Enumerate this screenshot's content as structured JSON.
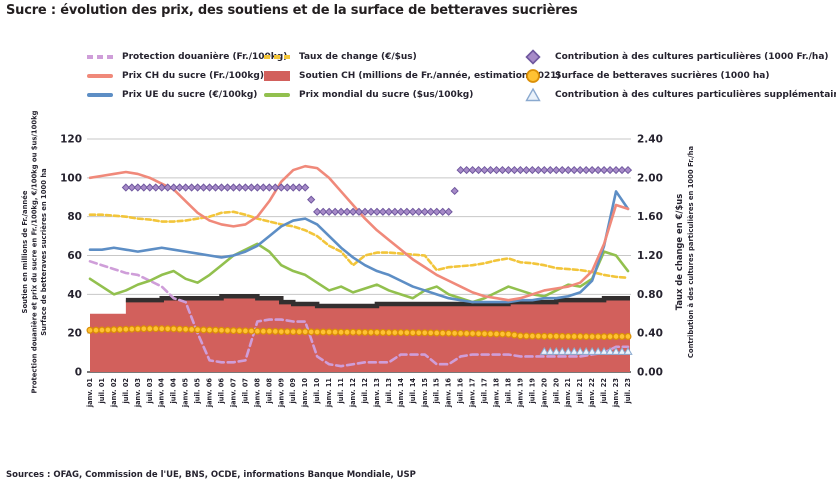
{
  "title": "Sucre : évolution des prix, des soutiens et de la surface de betteraves sucrières",
  "footer": "Sources : OFAG, Commission de l'UE, BNS, OCDE, informations Banque Mondiale, USP",
  "colors": {
    "text": "#26232f",
    "grid": "#c7c7c7",
    "axis": "#4d4d4d"
  },
  "axes": {
    "left": {
      "ticks": [
        0,
        20,
        40,
        60,
        80,
        100,
        120
      ],
      "title_lines": [
        "Soutien en millions de Fr./année",
        "Protection douanière et prix du sucre en Fr./100kg, €/100kg ou $us/100kg",
        "Surface de betteraves sucrières en 1000 ha"
      ]
    },
    "right": {
      "ticks": [
        "0.00",
        "0.40",
        "0.80",
        "1.20",
        "1.60",
        "2.00",
        "2.40"
      ],
      "title_lines": [
        "Taux de change en €/$us",
        "Contribution à des cultures particulières en 1000 Fr./ha"
      ]
    }
  },
  "legend": {
    "columns": [
      [
        "protection",
        "prix_ch",
        "prix_ue"
      ],
      [
        "taux_change",
        "soutien",
        "prix_mondial"
      ],
      [
        "contribution",
        "surface",
        "contribution_supp"
      ]
    ]
  },
  "chart_data": {
    "type": "line",
    "title": "Sucre : évolution des prix, des soutiens et de la surface de betteraves sucrières",
    "grid": true,
    "ylim_left": [
      0,
      120
    ],
    "ylim_right": [
      0,
      2.4
    ],
    "x_labels": [
      "janv. 01",
      "juil. 01",
      "janv. 02",
      "juil. 02",
      "janv. 03",
      "juil. 03",
      "janv. 04",
      "juil. 04",
      "janv. 05",
      "juil. 05",
      "janv. 06",
      "juil. 06",
      "janv. 07",
      "juil. 07",
      "janv. 08",
      "juil. 08",
      "janv. 09",
      "juil. 09",
      "janv. 10",
      "juil. 10",
      "janv. 11",
      "juil. 11",
      "janv. 12",
      "juil. 12",
      "janv. 13",
      "juil. 13",
      "janv. 14",
      "juil. 14",
      "janv. 15",
      "juil. 15",
      "janv. 16",
      "juil. 16",
      "janv. 17",
      "juil. 17",
      "janv. 18",
      "juil. 18",
      "janv. 19",
      "juil. 19",
      "janv. 20",
      "juil. 20",
      "janv. 21",
      "juil. 21",
      "janv. 22",
      "juil. 22",
      "janv. 23",
      "juil. 23"
    ],
    "series": [
      {
        "id": "protection",
        "name": "Protection douanière (Fr./100kg)",
        "axis": "left",
        "style": "dashed-line",
        "color": "#cf9ed9",
        "values": [
          57,
          55,
          53,
          51,
          50,
          47,
          44,
          38,
          36,
          20,
          6,
          5,
          5,
          6,
          26,
          27,
          27,
          26,
          26,
          8,
          4,
          3,
          4,
          5,
          5,
          5,
          9,
          9,
          9,
          4,
          4,
          8,
          9,
          9,
          9,
          9,
          8,
          8,
          8,
          8,
          8,
          8,
          9,
          10,
          13,
          13
        ]
      },
      {
        "id": "prix_ch",
        "name": "Prix CH du sucre (Fr./100kg)",
        "axis": "left",
        "style": "line",
        "color": "#f0897a",
        "values": [
          100,
          101,
          102,
          103,
          102,
          100,
          97,
          94,
          88,
          82,
          78,
          76,
          75,
          76,
          80,
          88,
          98,
          104,
          106,
          105,
          100,
          93,
          86,
          79,
          73,
          68,
          63,
          58,
          54,
          50,
          47,
          44,
          41,
          39,
          38,
          37,
          38,
          40,
          42,
          43,
          44,
          46,
          52,
          66,
          86,
          84
        ]
      },
      {
        "id": "prix_ue",
        "name": "Prix UE du sucre (€/100kg)",
        "axis": "left",
        "style": "line",
        "color": "#5d8ec5",
        "values": [
          63,
          63,
          64,
          63,
          62,
          63,
          64,
          63,
          62,
          61,
          60,
          59,
          60,
          62,
          65,
          70,
          75,
          78,
          79,
          76,
          70,
          64,
          59,
          55,
          52,
          50,
          47,
          44,
          42,
          40,
          38,
          37,
          36,
          36,
          36,
          36,
          37,
          37,
          38,
          38,
          39,
          41,
          47,
          65,
          93,
          84
        ]
      },
      {
        "id": "taux_change",
        "name": "Taux de change (€/$us)",
        "axis": "right",
        "style": "dashed-line",
        "color": "#f2c53a",
        "values": [
          1.62,
          1.62,
          1.61,
          1.6,
          1.58,
          1.57,
          1.55,
          1.55,
          1.56,
          1.58,
          1.6,
          1.64,
          1.65,
          1.62,
          1.58,
          1.55,
          1.52,
          1.5,
          1.46,
          1.4,
          1.3,
          1.24,
          1.1,
          1.2,
          1.23,
          1.23,
          1.22,
          1.21,
          1.2,
          1.05,
          1.08,
          1.09,
          1.1,
          1.12,
          1.15,
          1.17,
          1.13,
          1.12,
          1.1,
          1.07,
          1.06,
          1.05,
          1.03,
          1.0,
          0.98,
          0.97
        ]
      },
      {
        "id": "soutien",
        "name": "Soutien CH (millions de Fr./année, estimation 2021)",
        "axis": "left",
        "style": "step-area",
        "color": "#d2605c",
        "edge_color": "#332f2f",
        "values": [
          30,
          30,
          30,
          37,
          37,
          37,
          38,
          38,
          38,
          38,
          38,
          39,
          39,
          39,
          38,
          38,
          36,
          35,
          35,
          34,
          34,
          34,
          34,
          34,
          35,
          35,
          35,
          35,
          35,
          35,
          35,
          35,
          35,
          35,
          35,
          36,
          36,
          36,
          36,
          37,
          37,
          37,
          37,
          38,
          38,
          38
        ]
      },
      {
        "id": "prix_mondial",
        "name": "Prix mondial du sucre ($us/100kg)",
        "axis": "left",
        "style": "line",
        "color": "#92c04e",
        "values": [
          48,
          44,
          40,
          42,
          45,
          47,
          50,
          52,
          48,
          46,
          50,
          55,
          60,
          63,
          66,
          62,
          55,
          52,
          50,
          46,
          42,
          44,
          41,
          43,
          45,
          42,
          40,
          38,
          42,
          44,
          40,
          38,
          36,
          38,
          41,
          44,
          42,
          40,
          39,
          42,
          45,
          44,
          48,
          62,
          60,
          52
        ]
      },
      {
        "id": "contribution",
        "name": "Contribution à des cultures particulières (1000 Fr./ha)",
        "axis": "right",
        "style": "diamond-markers",
        "color": "#a78bc8",
        "edge_color": "#6f579e",
        "values": [
          null,
          null,
          null,
          1.9,
          1.9,
          1.9,
          1.9,
          1.9,
          1.9,
          1.9,
          1.9,
          1.9,
          1.9,
          1.9,
          1.9,
          1.9,
          1.9,
          1.9,
          1.9,
          1.65,
          1.65,
          1.65,
          1.65,
          1.65,
          1.65,
          1.65,
          1.65,
          1.65,
          1.65,
          1.65,
          1.65,
          2.08,
          2.08,
          2.08,
          2.08,
          2.08,
          2.08,
          2.08,
          2.08,
          2.08,
          2.08,
          2.08,
          2.08,
          2.08,
          2.08,
          2.08
        ]
      },
      {
        "id": "surface",
        "name": "Surface de betteraves sucrières (1000 ha)",
        "axis": "left",
        "style": "circle-markers",
        "color": "#ffc233",
        "edge_color": "#db8f06",
        "values": [
          21.5,
          21.6,
          21.8,
          22.0,
          22.2,
          22.3,
          22.3,
          22.2,
          22.0,
          21.8,
          21.6,
          21.5,
          21.3,
          21.2,
          21.0,
          21.0,
          20.8,
          20.8,
          20.7,
          20.6,
          20.6,
          20.5,
          20.5,
          20.4,
          20.4,
          20.3,
          20.3,
          20.2,
          20.2,
          20.1,
          20.0,
          19.9,
          19.8,
          19.7,
          19.6,
          19.5,
          18.6,
          18.5,
          18.4,
          18.4,
          18.3,
          18.3,
          18.2,
          18.2,
          18.3,
          18.3
        ]
      },
      {
        "id": "contribution_supp",
        "name": "Contribution à des cultures particulières supplémentaire (1000 Fr./ha)",
        "axis": "right",
        "style": "triangle-markers",
        "color": "#eaf2fb",
        "edge_color": "#8aa9cf",
        "values": [
          null,
          null,
          null,
          null,
          null,
          null,
          null,
          null,
          null,
          null,
          null,
          null,
          null,
          null,
          null,
          null,
          null,
          null,
          null,
          null,
          null,
          null,
          null,
          null,
          null,
          null,
          null,
          null,
          null,
          null,
          null,
          null,
          null,
          null,
          null,
          null,
          null,
          null,
          0.21,
          0.21,
          0.21,
          0.21,
          0.21,
          0.21,
          0.21,
          0.21
        ]
      }
    ]
  }
}
